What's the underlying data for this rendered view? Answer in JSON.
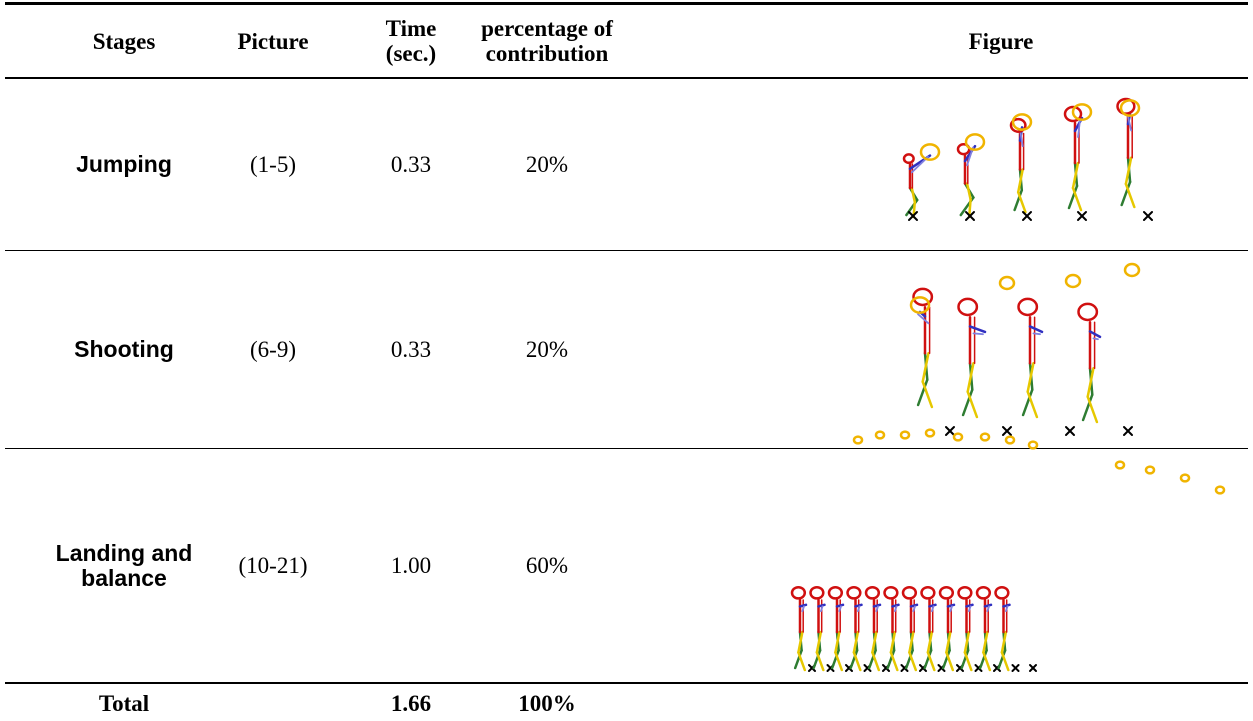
{
  "table": {
    "header": [
      "Stages",
      "Picture",
      "Time (sec.)",
      "percentage of contribution",
      "Figure"
    ],
    "rows": [
      [
        "Jumping",
        "(1-5)",
        "0.33",
        "20%"
      ],
      [
        "Shooting",
        "(6-9)",
        "0.33",
        "20%"
      ],
      [
        "Landing and balance",
        "(10-21)",
        "1.00",
        "60%"
      ]
    ],
    "total": [
      "Total",
      "1.66",
      "100%"
    ]
  }
}
